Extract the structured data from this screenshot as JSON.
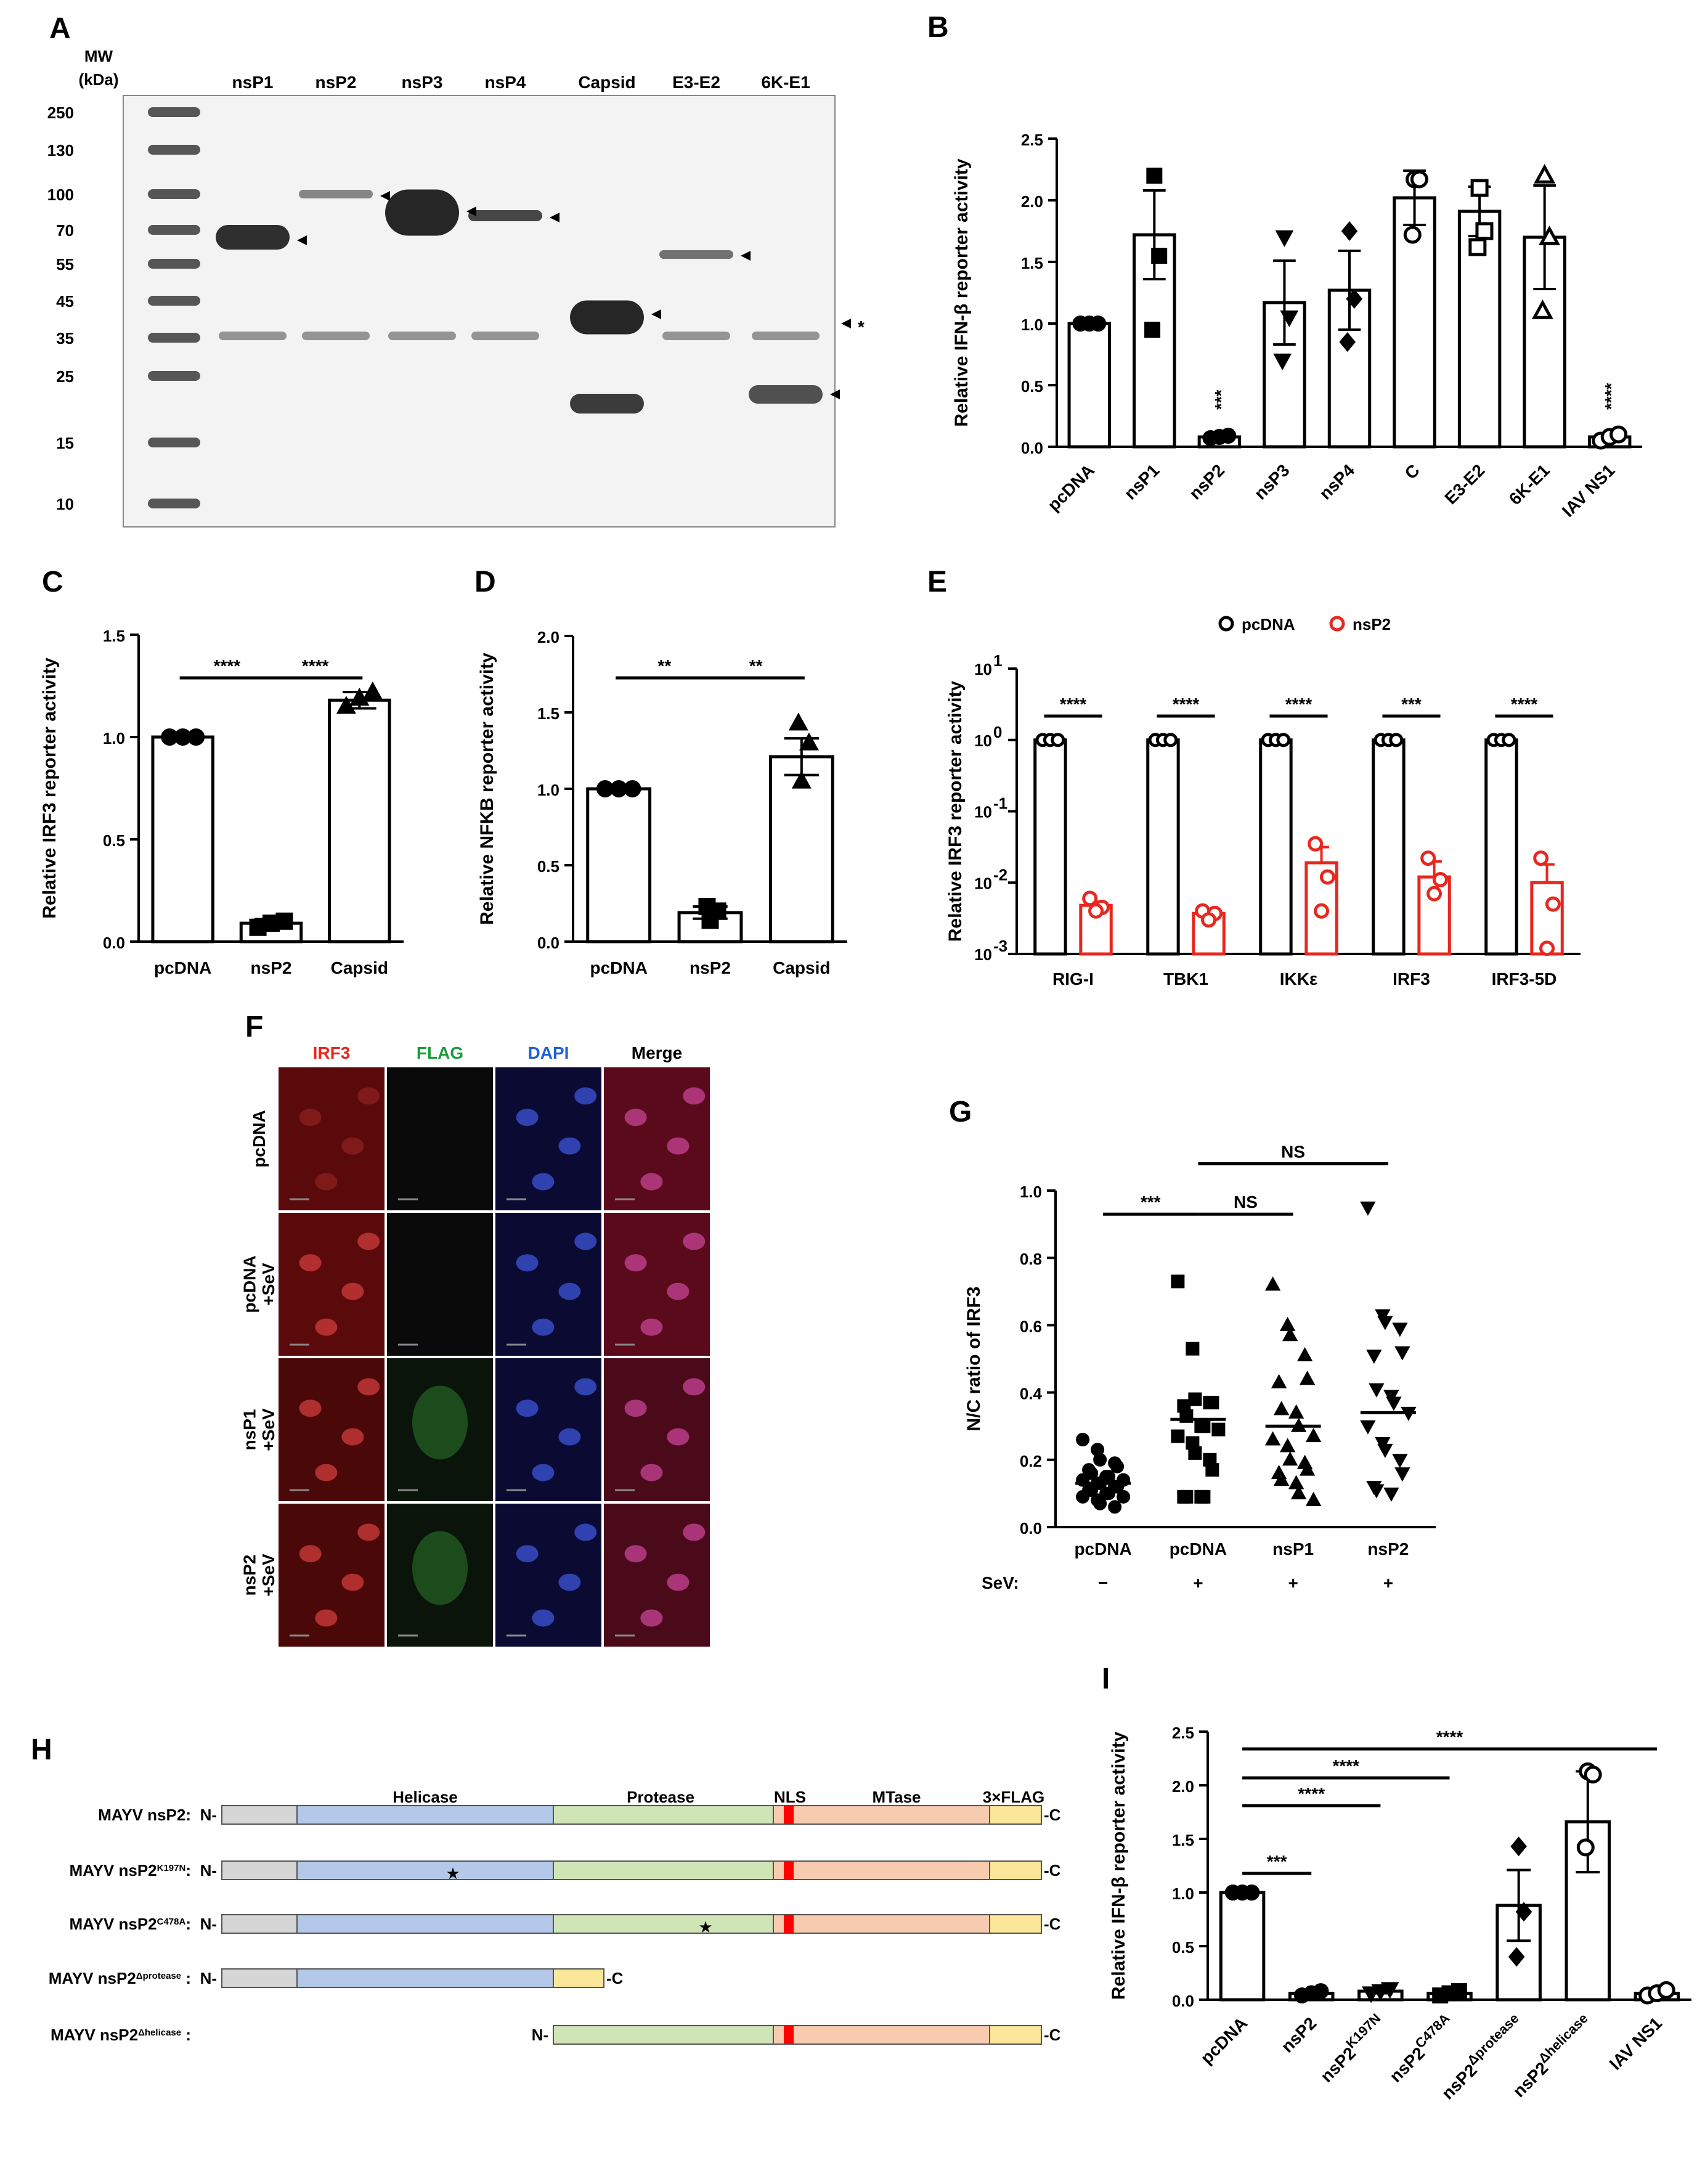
{
  "panel_labels": {
    "A": "A",
    "B": "B",
    "C": "C",
    "D": "D",
    "E": "E",
    "F": "F",
    "G": "G",
    "H": "H",
    "I": "I"
  },
  "blot": {
    "mw_header": "MW",
    "mw_unit": "(kDa)",
    "markers": [
      "250",
      "130",
      "100",
      "70",
      "55",
      "45",
      "35",
      "25",
      "15",
      "10"
    ],
    "lanes": [
      "nsP1",
      "nsP2",
      "nsP3",
      "nsP4",
      "Capsid",
      "E3-E2",
      "6K-E1"
    ],
    "nonspecific_marker": "*"
  },
  "chart_data": [
    {
      "id": "B",
      "type": "bar",
      "ylabel": "Relative IFN-β reporter activity",
      "ylim": [
        0,
        2.5
      ],
      "yticks": [
        "0.0",
        "0.5",
        "1.0",
        "1.5",
        "2.0",
        "2.5"
      ],
      "categories": [
        "pcDNA",
        "nsP1",
        "nsP2",
        "nsP3",
        "nsP4",
        "C",
        "E3-E2",
        "6K-E1",
        "IAV NS1"
      ],
      "values": [
        1.0,
        1.72,
        0.08,
        1.17,
        1.27,
        2.02,
        1.91,
        1.7,
        0.08
      ],
      "errors": [
        0,
        0.36,
        0.02,
        0.34,
        0.32,
        0.22,
        0.2,
        0.42,
        0.02
      ],
      "points": [
        [
          1,
          1,
          1
        ],
        [
          2.2,
          1.55,
          0.95
        ],
        [
          0.07,
          0.08,
          0.09
        ],
        [
          1.7,
          1.05,
          0.7
        ],
        [
          1.75,
          1.2,
          0.85
        ],
        [
          2.17,
          2.17,
          1.72
        ],
        [
          2.1,
          1.75,
          1.62
        ],
        [
          2.2,
          1.7,
          1.1
        ],
        [
          0.05,
          0.08,
          0.1
        ]
      ],
      "markers": [
        "circle",
        "square",
        "circle",
        "triangle-down",
        "diamond",
        "circle-open",
        "square-open",
        "triangle-open",
        "circle-open"
      ],
      "significance": [
        "",
        "",
        "***",
        "",
        "",
        "",
        "",
        "",
        "****"
      ]
    },
    {
      "id": "C",
      "type": "bar",
      "ylabel": "Relative IRF3 reporter activity",
      "ylim": [
        0,
        1.5
      ],
      "yticks": [
        "0.0",
        "0.5",
        "1.0",
        "1.5"
      ],
      "categories": [
        "pcDNA",
        "nsP2",
        "Capsid"
      ],
      "values": [
        1.0,
        0.09,
        1.18
      ],
      "errors": [
        0,
        0.02,
        0.04
      ],
      "points": [
        [
          1,
          1,
          1
        ],
        [
          0.07,
          0.09,
          0.1
        ],
        [
          1.15,
          1.19,
          1.22
        ]
      ],
      "markers": [
        "circle",
        "square",
        "triangle"
      ],
      "comparisons": [
        {
          "from": 0,
          "to": 1,
          "label": "****"
        },
        {
          "from": 1,
          "to": 2,
          "label": "****"
        }
      ]
    },
    {
      "id": "D",
      "type": "bar",
      "ylabel": "Relative NFKB reporter activity",
      "ylim": [
        0,
        2.0
      ],
      "yticks": [
        "0.0",
        "0.5",
        "1.0",
        "1.5",
        "2.0"
      ],
      "categories": [
        "pcDNA",
        "nsP2",
        "Capsid"
      ],
      "values": [
        1.0,
        0.19,
        1.21
      ],
      "errors": [
        0,
        0.04,
        0.12
      ],
      "points": [
        [
          1,
          1,
          1
        ],
        [
          0.14,
          0.2,
          0.23
        ],
        [
          1.05,
          1.3,
          1.43
        ]
      ],
      "markers": [
        "circle",
        "square",
        "triangle"
      ],
      "comparisons": [
        {
          "from": 0,
          "to": 1,
          "label": "**"
        },
        {
          "from": 1,
          "to": 2,
          "label": "**"
        }
      ]
    },
    {
      "id": "E",
      "type": "bar",
      "scale": "log",
      "ylabel": "Relative IRF3 reporter activity",
      "categories": [
        "RIG-I",
        "TBK1",
        "IKKε",
        "IRF3",
        "IRF3-5D"
      ],
      "series": [
        {
          "name": "pcDNA",
          "color": "#000000",
          "values": [
            1,
            1,
            1,
            1,
            1
          ]
        },
        {
          "name": "nsP2",
          "color": "#e8271e",
          "values": [
            0.0048,
            0.0037,
            0.019,
            0.012,
            0.01
          ]
        }
      ],
      "nsp2_points": [
        [
          0.006,
          0.0045,
          0.004
        ],
        [
          0.004,
          0.0037,
          0.003
        ],
        [
          0.035,
          0.012,
          0.004
        ],
        [
          0.022,
          0.011,
          0.007
        ],
        [
          0.022,
          0.005,
          0.0012
        ]
      ],
      "significance": [
        "****",
        "****",
        "****",
        "***",
        "****"
      ]
    },
    {
      "id": "G",
      "type": "scatter",
      "ylabel": "N/C ratio of IRF3",
      "ylim": [
        0,
        1.0
      ],
      "yticks": [
        "0.0",
        "0.2",
        "0.4",
        "0.6",
        "0.8",
        "1.0"
      ],
      "categories": [
        "pcDNA",
        "pcDNA",
        "nsP1",
        "nsP2"
      ],
      "row_label": "SeV:",
      "sev": [
        "−",
        "+",
        "+",
        "+"
      ],
      "means": [
        0.13,
        0.32,
        0.3,
        0.34
      ],
      "comparisons": [
        {
          "from": 0,
          "to": 1,
          "label": "***",
          "y": 0.93
        },
        {
          "from": 1,
          "to": 2,
          "label": "NS",
          "y": 0.93
        },
        {
          "from": 1,
          "to": 3,
          "label": "NS",
          "y": 1.08
        }
      ],
      "markers": [
        "circle",
        "square",
        "triangle",
        "triangle-down"
      ],
      "points": [
        [
          0.26,
          0.23,
          0.2,
          0.19,
          0.18,
          0.17,
          0.16,
          0.15,
          0.15,
          0.14,
          0.14,
          0.13,
          0.13,
          0.12,
          0.12,
          0.11,
          0.11,
          0.1,
          0.1,
          0.09,
          0.09,
          0.08,
          0.07,
          0.06
        ],
        [
          0.73,
          0.53,
          0.38,
          0.37,
          0.37,
          0.36,
          0.33,
          0.3,
          0.3,
          0.29,
          0.27,
          0.25,
          0.22,
          0.2,
          0.17,
          0.09,
          0.09,
          0.09,
          0.09
        ],
        [
          0.72,
          0.6,
          0.57,
          0.51,
          0.44,
          0.43,
          0.35,
          0.34,
          0.3,
          0.27,
          0.26,
          0.24,
          0.2,
          0.19,
          0.17,
          0.16,
          0.14,
          0.13,
          0.1,
          0.08
        ],
        [
          0.95,
          0.63,
          0.61,
          0.59,
          0.52,
          0.51,
          0.41,
          0.39,
          0.37,
          0.34,
          0.3,
          0.25,
          0.23,
          0.2,
          0.16,
          0.12,
          0.11,
          0.1
        ]
      ]
    },
    {
      "id": "I",
      "type": "bar",
      "ylabel": "Relative IFN-β reporter activity",
      "ylim": [
        0,
        2.5
      ],
      "yticks": [
        "0.0",
        "0.5",
        "1.0",
        "1.5",
        "2.0",
        "2.5"
      ],
      "categories": [
        "pcDNA",
        "nsP2",
        "nsP2",
        "nsP2",
        "nsP2",
        "nsP2",
        "IAV NS1"
      ],
      "category_superscripts": [
        "",
        "",
        "K197N",
        "C478A",
        "Δprotease",
        "Δhelicase",
        ""
      ],
      "values": [
        1.0,
        0.06,
        0.08,
        0.06,
        0.88,
        1.66,
        0.06
      ],
      "errors": [
        0,
        0.02,
        0.02,
        0.02,
        0.33,
        0.47,
        0.02
      ],
      "points": [
        [
          1,
          1,
          1
        ],
        [
          0.04,
          0.06,
          0.08
        ],
        [
          0.06,
          0.08,
          0.1
        ],
        [
          0.04,
          0.06,
          0.08
        ],
        [
          1.43,
          0.82,
          0.4
        ],
        [
          2.13,
          2.1,
          1.42
        ],
        [
          0.04,
          0.06,
          0.09
        ]
      ],
      "markers": [
        "circle",
        "circle",
        "triangle-down",
        "square",
        "diamond",
        "circle-open",
        "circle-open"
      ],
      "comparisons": [
        {
          "from": 0,
          "to": 1,
          "label": "***"
        },
        {
          "from": 0,
          "to": 2,
          "label": "****"
        },
        {
          "from": 0,
          "to": 3,
          "label": "****"
        },
        {
          "from": 0,
          "to": 6,
          "label": "****"
        }
      ]
    }
  ],
  "microscopy": {
    "columns": [
      "IRF3",
      "FLAG",
      "DAPI",
      "Merge"
    ],
    "column_colors": [
      "#e8271e",
      "#1a9b3c",
      "#1f5fd6",
      "#000000"
    ],
    "rows": [
      "pcDNA",
      "pcDNA\n+SeV",
      "nsP1\n+SeV",
      "nsP2\n+SeV"
    ],
    "row_lines": [
      [
        "pcDNA"
      ],
      [
        "pcDNA",
        "+SeV"
      ],
      [
        "nsP1",
        "+SeV"
      ],
      [
        "nsP2",
        "+SeV"
      ]
    ]
  },
  "schematic": {
    "domain_labels": [
      "Helicase",
      "Protease",
      "NLS",
      "MTase",
      "3×FLAG"
    ],
    "domain_colors": {
      "grey": "#d6d6d6",
      "helicase": "#b4c8ea",
      "protease": "#cfe5b6",
      "nls": "#ff0000",
      "mtase": "#f6cbb0",
      "flag": "#fbe79a"
    },
    "constructs": [
      {
        "name": "MAYV nsP2",
        "sup": "",
        "suffix": ":"
      },
      {
        "name": "MAYV nsP2",
        "sup": "K197N",
        "suffix": ":"
      },
      {
        "name": "MAYV nsP2",
        "sup": "C478A",
        "suffix": ":"
      },
      {
        "name": "MAYV nsP2",
        "sup": "Δprotease",
        "suffix": " :"
      },
      {
        "name": "MAYV nsP2",
        "sup": "Δhelicase",
        "suffix": " :"
      }
    ],
    "n_term": "N-",
    "c_term": "-C",
    "mutation_mark": "★"
  }
}
